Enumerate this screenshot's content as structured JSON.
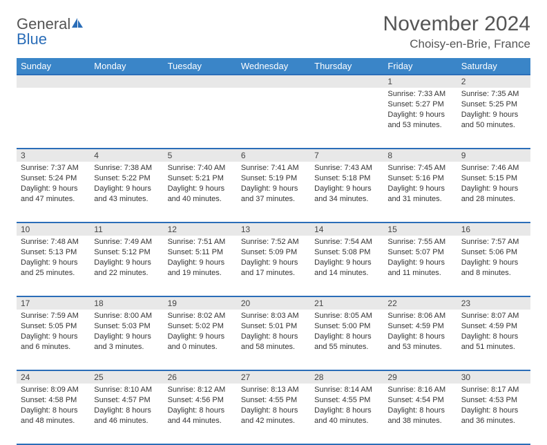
{
  "logo": {
    "line1": "General",
    "line2": "Blue"
  },
  "title": {
    "month": "November 2024",
    "location": "Choisy-en-Brie, France"
  },
  "colors": {
    "header_bg": "#3a85c8",
    "header_border": "#2a6db8",
    "daynum_bg": "#e8e8e8",
    "text_dark": "#333333",
    "text_mid": "#555555",
    "logo_gray": "#545454",
    "logo_blue": "#2a6db8"
  },
  "weekdays": [
    "Sunday",
    "Monday",
    "Tuesday",
    "Wednesday",
    "Thursday",
    "Friday",
    "Saturday"
  ],
  "weeks": [
    [
      null,
      null,
      null,
      null,
      null,
      {
        "n": "1",
        "sunrise": "7:33 AM",
        "sunset": "5:27 PM",
        "daylight": "9 hours and 53 minutes."
      },
      {
        "n": "2",
        "sunrise": "7:35 AM",
        "sunset": "5:25 PM",
        "daylight": "9 hours and 50 minutes."
      }
    ],
    [
      {
        "n": "3",
        "sunrise": "7:37 AM",
        "sunset": "5:24 PM",
        "daylight": "9 hours and 47 minutes."
      },
      {
        "n": "4",
        "sunrise": "7:38 AM",
        "sunset": "5:22 PM",
        "daylight": "9 hours and 43 minutes."
      },
      {
        "n": "5",
        "sunrise": "7:40 AM",
        "sunset": "5:21 PM",
        "daylight": "9 hours and 40 minutes."
      },
      {
        "n": "6",
        "sunrise": "7:41 AM",
        "sunset": "5:19 PM",
        "daylight": "9 hours and 37 minutes."
      },
      {
        "n": "7",
        "sunrise": "7:43 AM",
        "sunset": "5:18 PM",
        "daylight": "9 hours and 34 minutes."
      },
      {
        "n": "8",
        "sunrise": "7:45 AM",
        "sunset": "5:16 PM",
        "daylight": "9 hours and 31 minutes."
      },
      {
        "n": "9",
        "sunrise": "7:46 AM",
        "sunset": "5:15 PM",
        "daylight": "9 hours and 28 minutes."
      }
    ],
    [
      {
        "n": "10",
        "sunrise": "7:48 AM",
        "sunset": "5:13 PM",
        "daylight": "9 hours and 25 minutes."
      },
      {
        "n": "11",
        "sunrise": "7:49 AM",
        "sunset": "5:12 PM",
        "daylight": "9 hours and 22 minutes."
      },
      {
        "n": "12",
        "sunrise": "7:51 AM",
        "sunset": "5:11 PM",
        "daylight": "9 hours and 19 minutes."
      },
      {
        "n": "13",
        "sunrise": "7:52 AM",
        "sunset": "5:09 PM",
        "daylight": "9 hours and 17 minutes."
      },
      {
        "n": "14",
        "sunrise": "7:54 AM",
        "sunset": "5:08 PM",
        "daylight": "9 hours and 14 minutes."
      },
      {
        "n": "15",
        "sunrise": "7:55 AM",
        "sunset": "5:07 PM",
        "daylight": "9 hours and 11 minutes."
      },
      {
        "n": "16",
        "sunrise": "7:57 AM",
        "sunset": "5:06 PM",
        "daylight": "9 hours and 8 minutes."
      }
    ],
    [
      {
        "n": "17",
        "sunrise": "7:59 AM",
        "sunset": "5:05 PM",
        "daylight": "9 hours and 6 minutes."
      },
      {
        "n": "18",
        "sunrise": "8:00 AM",
        "sunset": "5:03 PM",
        "daylight": "9 hours and 3 minutes."
      },
      {
        "n": "19",
        "sunrise": "8:02 AM",
        "sunset": "5:02 PM",
        "daylight": "9 hours and 0 minutes."
      },
      {
        "n": "20",
        "sunrise": "8:03 AM",
        "sunset": "5:01 PM",
        "daylight": "8 hours and 58 minutes."
      },
      {
        "n": "21",
        "sunrise": "8:05 AM",
        "sunset": "5:00 PM",
        "daylight": "8 hours and 55 minutes."
      },
      {
        "n": "22",
        "sunrise": "8:06 AM",
        "sunset": "4:59 PM",
        "daylight": "8 hours and 53 minutes."
      },
      {
        "n": "23",
        "sunrise": "8:07 AM",
        "sunset": "4:59 PM",
        "daylight": "8 hours and 51 minutes."
      }
    ],
    [
      {
        "n": "24",
        "sunrise": "8:09 AM",
        "sunset": "4:58 PM",
        "daylight": "8 hours and 48 minutes."
      },
      {
        "n": "25",
        "sunrise": "8:10 AM",
        "sunset": "4:57 PM",
        "daylight": "8 hours and 46 minutes."
      },
      {
        "n": "26",
        "sunrise": "8:12 AM",
        "sunset": "4:56 PM",
        "daylight": "8 hours and 44 minutes."
      },
      {
        "n": "27",
        "sunrise": "8:13 AM",
        "sunset": "4:55 PM",
        "daylight": "8 hours and 42 minutes."
      },
      {
        "n": "28",
        "sunrise": "8:14 AM",
        "sunset": "4:55 PM",
        "daylight": "8 hours and 40 minutes."
      },
      {
        "n": "29",
        "sunrise": "8:16 AM",
        "sunset": "4:54 PM",
        "daylight": "8 hours and 38 minutes."
      },
      {
        "n": "30",
        "sunrise": "8:17 AM",
        "sunset": "4:53 PM",
        "daylight": "8 hours and 36 minutes."
      }
    ]
  ],
  "labels": {
    "sunrise": "Sunrise: ",
    "sunset": "Sunset: ",
    "daylight": "Daylight: "
  }
}
